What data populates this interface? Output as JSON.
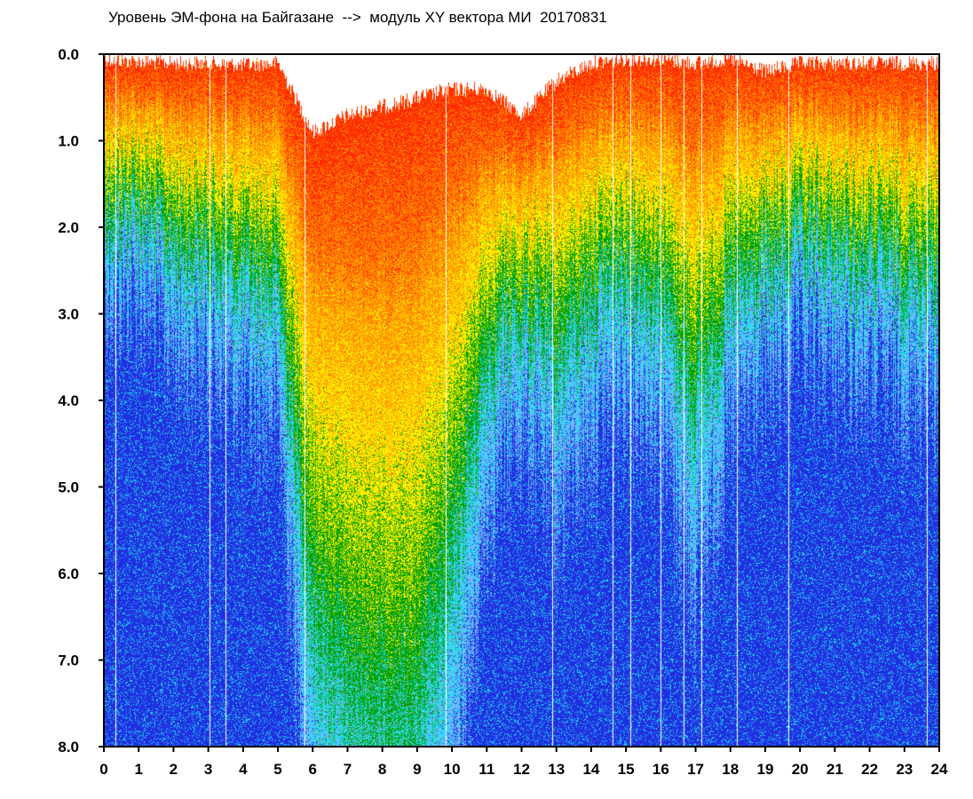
{
  "chart_data": {
    "type": "heatmap",
    "title": "Уровень ЭМ-фона на Байгазане  -->  модуль XY вектора МИ  20170831",
    "xlabel": "",
    "ylabel": "",
    "xlim": [
      0,
      24
    ],
    "ylim": [
      0.0,
      8.0
    ],
    "y_inverted": true,
    "grid": false,
    "x_ticks": [
      "0",
      "1",
      "2",
      "3",
      "4",
      "5",
      "6",
      "7",
      "8",
      "9",
      "10",
      "11",
      "12",
      "13",
      "14",
      "15",
      "16",
      "17",
      "18",
      "19",
      "20",
      "21",
      "22",
      "23",
      "24"
    ],
    "y_ticks": [
      "0.0",
      "1.0",
      "2.0",
      "3.0",
      "4.0",
      "5.0",
      "6.0",
      "7.0",
      "8.0"
    ],
    "colors": {
      "red": "#ff2a00",
      "orange": "#ff8c00",
      "yellow": "#ffee00",
      "green": "#00a000",
      "cyan": "#20e0f0",
      "lightblue": "#80b0ff",
      "blue": "#2030e0"
    },
    "hour_top_edge": [
      0.05,
      0.08,
      0.1,
      0.1,
      0.12,
      0.1,
      0.9,
      0.7,
      0.6,
      0.5,
      0.4,
      0.4,
      0.7,
      0.3,
      0.1,
      0.05,
      0.05,
      0.1,
      0.05,
      0.2,
      0.1,
      0.1,
      0.1,
      0.1
    ],
    "hour_depth_level": [
      1.8,
      1.8,
      2.2,
      2.3,
      2.6,
      2.7,
      6.5,
      7.5,
      7.8,
      7.8,
      6.0,
      3.5,
      3.0,
      3.5,
      2.8,
      2.5,
      2.8,
      4.0,
      2.8,
      2.5,
      2.2,
      2.3,
      2.4,
      2.5
    ]
  }
}
